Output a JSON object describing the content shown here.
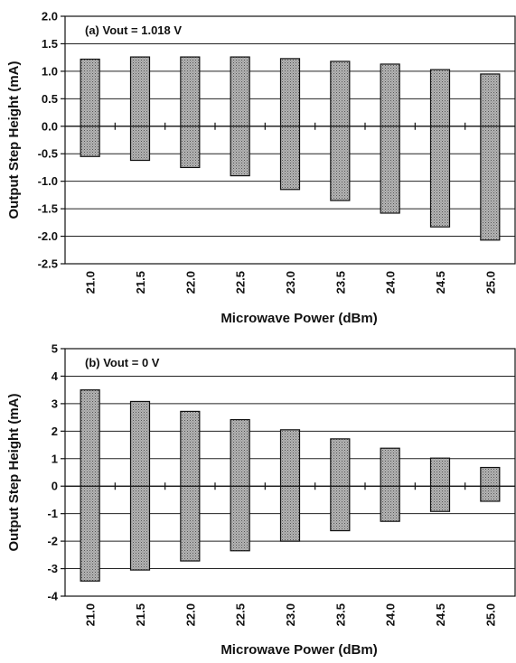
{
  "chart_data": [
    {
      "type": "bar",
      "title": "",
      "panel_label": "(a)  Vout = 1.018 V",
      "xlabel": "Microwave Power (dBm)",
      "ylabel": "Output Step Height (mA)",
      "ylim": [
        -2.5,
        2.0
      ],
      "yticks": [
        "2.0",
        "1.5",
        "1.0",
        "0.5",
        "0.0",
        "-0.5",
        "-1.0",
        "-1.5",
        "-2.0",
        "-2.5"
      ],
      "grid": true,
      "categories": [
        "21.0",
        "21.5",
        "22.0",
        "22.5",
        "23.0",
        "23.5",
        "24.0",
        "24.5",
        "25.0"
      ],
      "series": [
        {
          "low": [
            -0.55,
            -0.62,
            -0.75,
            -0.9,
            -1.15,
            -1.35,
            -1.58,
            -1.83,
            -2.07
          ],
          "high": [
            1.22,
            1.26,
            1.26,
            1.26,
            1.23,
            1.18,
            1.13,
            1.03,
            0.95
          ]
        }
      ]
    },
    {
      "type": "bar",
      "title": "",
      "panel_label": "(b)  Vout = 0 V",
      "xlabel": "Microwave Power (dBm)",
      "ylabel": "Output Step Height (mA)",
      "ylim": [
        -4,
        5
      ],
      "yticks": [
        "5",
        "4",
        "3",
        "2",
        "1",
        "0",
        "-1",
        "-2",
        "-3",
        "-4"
      ],
      "grid": true,
      "categories": [
        "21.0",
        "21.5",
        "22.0",
        "22.5",
        "23.0",
        "23.5",
        "24.0",
        "24.5",
        "25.0"
      ],
      "series": [
        {
          "low": [
            -3.45,
            -3.05,
            -2.72,
            -2.35,
            -2.0,
            -1.62,
            -1.28,
            -0.92,
            -0.55
          ],
          "high": [
            3.5,
            3.08,
            2.72,
            2.42,
            2.05,
            1.72,
            1.38,
            1.02,
            0.68
          ]
        }
      ]
    }
  ]
}
